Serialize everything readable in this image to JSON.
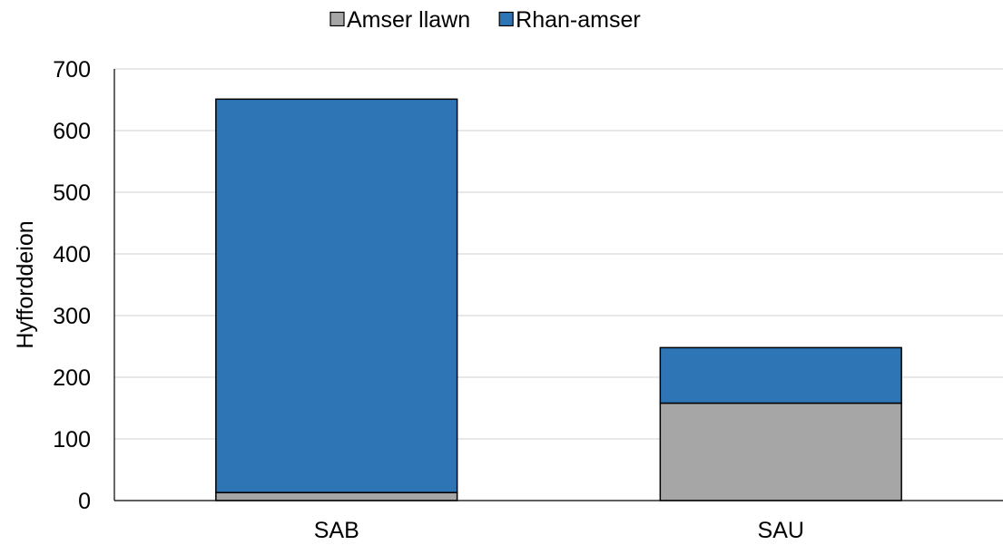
{
  "chart_data": {
    "type": "bar",
    "stacked": true,
    "categories": [
      "SAB",
      "SAU"
    ],
    "series": [
      {
        "name": "Amser llawn",
        "values": [
          13,
          158
        ],
        "color": "#a6a6a6"
      },
      {
        "name": "Rhan-amser",
        "values": [
          638,
          90
        ],
        "color": "#2e75b6"
      }
    ],
    "xlabel": "",
    "ylabel": "Hyfforddeion",
    "ylim": [
      0,
      700
    ],
    "yticks": [
      0,
      100,
      200,
      300,
      400,
      500,
      600,
      700
    ],
    "grid": true,
    "legend_position": "top"
  }
}
